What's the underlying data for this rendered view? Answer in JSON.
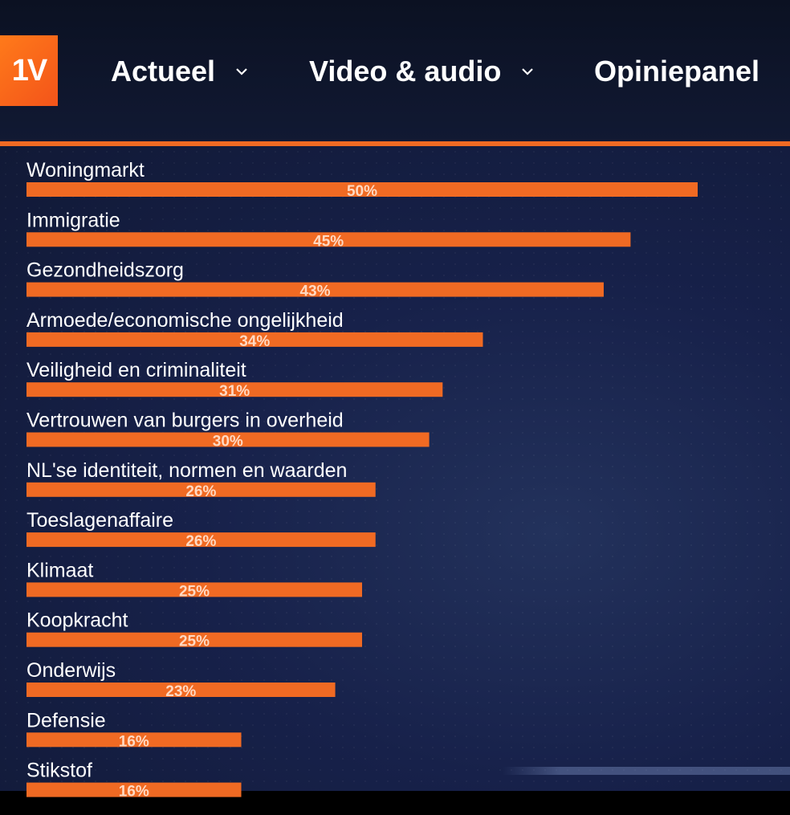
{
  "header": {
    "logo_text": "1V",
    "nav": [
      {
        "label": "Actueel",
        "has_dropdown": true
      },
      {
        "label": "Video & audio",
        "has_dropdown": true
      },
      {
        "label": "Opiniepanel",
        "has_dropdown": false
      }
    ],
    "accent_color": "#f06a23",
    "background_color": "#0f1730"
  },
  "chart_data": {
    "type": "bar",
    "orientation": "horizontal",
    "categories": [
      "Woningmarkt",
      "Immigratie",
      "Gezondheidszorg",
      "Armoede/economische ongelijkheid",
      "Veiligheid en criminaliteit",
      "Vertrouwen van burgers in overheid",
      "NL'se identiteit, normen en waarden",
      "Toeslagenaffaire",
      "Klimaat",
      "Koopkracht",
      "Onderwijs",
      "Defensie",
      "Stikstof"
    ],
    "values": [
      50,
      45,
      43,
      34,
      31,
      30,
      26,
      26,
      25,
      25,
      23,
      16,
      16
    ],
    "value_labels": [
      "50%",
      "45%",
      "43%",
      "34%",
      "31%",
      "30%",
      "26%",
      "26%",
      "25%",
      "25%",
      "23%",
      "16%",
      "16%"
    ],
    "bar_color": "#f06a23",
    "xlim": [
      0,
      50
    ],
    "grid": false
  }
}
